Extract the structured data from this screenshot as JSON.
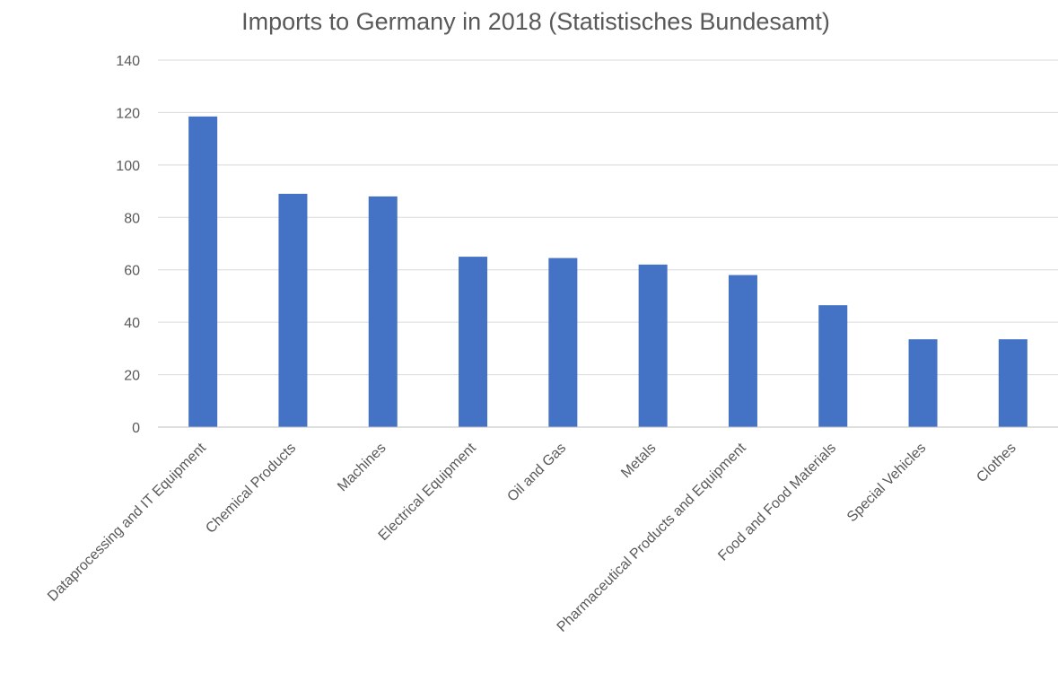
{
  "chart_data": {
    "type": "bar",
    "title": "Imports to Germany in 2018 (Statistisches Bundesamt)",
    "xlabel": "",
    "ylabel": "",
    "categories": [
      "Dataprocessing and IT Equipment",
      "Chemical Products",
      "Machines",
      "Electrical Equipment",
      "Oil and Gas",
      "Metals",
      "Pharmaceutical Products and Equipment",
      "Food and Food Materials",
      "Special Vehicles",
      "Clothes"
    ],
    "values": [
      118.5,
      89,
      88,
      65,
      64.5,
      62,
      58,
      46.5,
      33.5,
      33.5
    ],
    "ylim": [
      0,
      140
    ],
    "yticks": [
      "0",
      "20",
      "40",
      "60",
      "80",
      "100",
      "120",
      "140"
    ],
    "grid": true,
    "legend": "none",
    "colors": {
      "bar": "#4472C4"
    }
  }
}
